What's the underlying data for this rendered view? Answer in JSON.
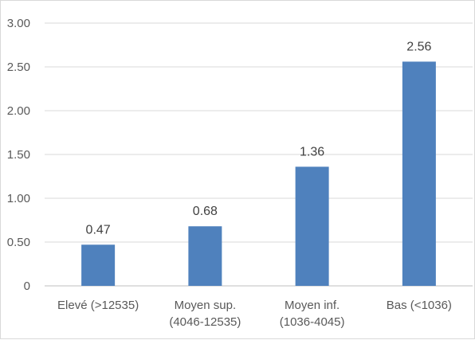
{
  "chart_data": {
    "type": "bar",
    "categories": [
      [
        "Elevé (>12535)"
      ],
      [
        "Moyen sup.",
        "(4046-12535)"
      ],
      [
        "Moyen inf.",
        "(1036-4045)"
      ],
      [
        "Bas (<1036)"
      ]
    ],
    "values": [
      0.47,
      0.68,
      1.36,
      2.56
    ],
    "value_labels": [
      "0.47",
      "0.68",
      "1.36",
      "2.56"
    ],
    "yticks": [
      0,
      0.5,
      1.0,
      1.5,
      2.0,
      2.5,
      3.0
    ],
    "ytick_labels": [
      "0",
      "0.50",
      "1.00",
      "1.50",
      "2.00",
      "2.50",
      "3.00"
    ],
    "ylim": [
      0,
      3
    ],
    "grid": true,
    "legend": "none",
    "bar_color": "#4f81bd"
  }
}
